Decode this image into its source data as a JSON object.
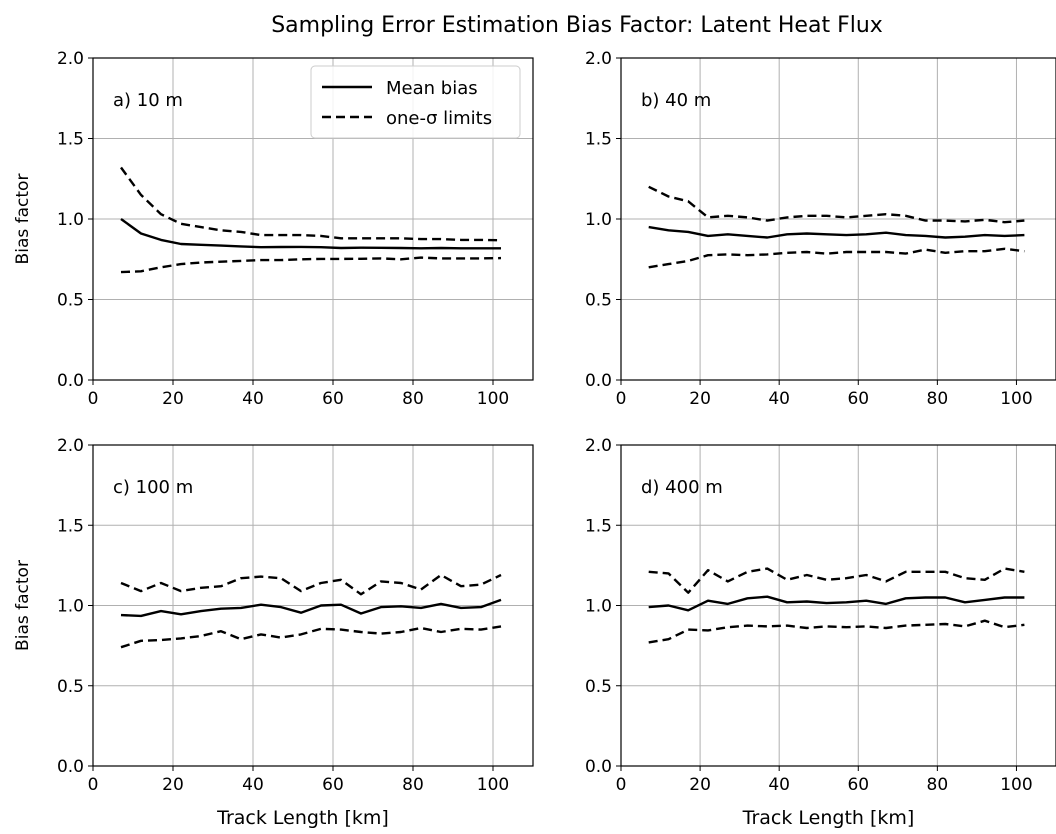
{
  "figure": {
    "title": "Sampling Error Estimation Bias Factor: Latent Heat Flux",
    "legend": {
      "mean_label": "Mean bias",
      "sigma_label": "one-σ limits",
      "placement": "upper right of panel a"
    }
  },
  "chart_data": [
    {
      "type": "line",
      "panel_label": "a) 10 m",
      "xlabel": "",
      "ylabel": "Bias factor",
      "xlim": [
        0,
        110
      ],
      "ylim": [
        0,
        2
      ],
      "xticks": [
        "0",
        "20",
        "40",
        "60",
        "80",
        "100"
      ],
      "yticks": [
        "0.0",
        "0.5",
        "1.0",
        "1.5",
        "2.0"
      ],
      "grid": true,
      "x": [
        7,
        12,
        17,
        22,
        27,
        32,
        37,
        42,
        47,
        52,
        57,
        62,
        67,
        72,
        77,
        82,
        87,
        92,
        97,
        102
      ],
      "series": [
        {
          "name": "Mean bias",
          "style": "solid",
          "values": [
            1.0,
            0.91,
            0.87,
            0.845,
            0.84,
            0.835,
            0.83,
            0.825,
            0.826,
            0.827,
            0.825,
            0.82,
            0.822,
            0.821,
            0.82,
            0.818,
            0.82,
            0.818,
            0.818,
            0.818
          ]
        },
        {
          "name": "one-σ limits",
          "style": "dashed",
          "values": [
            1.32,
            1.15,
            1.03,
            0.97,
            0.95,
            0.93,
            0.92,
            0.9,
            0.9,
            0.9,
            0.895,
            0.88,
            0.88,
            0.88,
            0.88,
            0.875,
            0.875,
            0.87,
            0.87,
            0.868
          ]
        },
        {
          "name": "",
          "style": "dashed",
          "values": [
            0.67,
            0.675,
            0.7,
            0.72,
            0.73,
            0.735,
            0.74,
            0.745,
            0.745,
            0.75,
            0.752,
            0.752,
            0.753,
            0.755,
            0.75,
            0.76,
            0.755,
            0.755,
            0.755,
            0.757
          ]
        }
      ]
    },
    {
      "type": "line",
      "panel_label": "b) 40 m",
      "xlabel": "",
      "ylabel": "",
      "xlim": [
        0,
        110
      ],
      "ylim": [
        0,
        2
      ],
      "xticks": [
        "0",
        "20",
        "40",
        "60",
        "80",
        "100"
      ],
      "yticks": [
        "0.0",
        "0.5",
        "1.0",
        "1.5",
        "2.0"
      ],
      "grid": true,
      "x": [
        7,
        12,
        17,
        22,
        27,
        32,
        37,
        42,
        47,
        52,
        57,
        62,
        67,
        72,
        77,
        82,
        87,
        92,
        97,
        102
      ],
      "series": [
        {
          "name": "Mean bias",
          "style": "solid",
          "values": [
            0.95,
            0.93,
            0.92,
            0.895,
            0.905,
            0.895,
            0.885,
            0.905,
            0.91,
            0.905,
            0.9,
            0.905,
            0.915,
            0.9,
            0.895,
            0.885,
            0.89,
            0.9,
            0.895,
            0.9
          ]
        },
        {
          "name": "one-σ limits",
          "style": "dashed",
          "values": [
            1.2,
            1.14,
            1.11,
            1.01,
            1.02,
            1.01,
            0.99,
            1.01,
            1.02,
            1.02,
            1.01,
            1.02,
            1.03,
            1.02,
            0.99,
            0.99,
            0.985,
            0.995,
            0.98,
            0.99
          ]
        },
        {
          "name": "",
          "style": "dashed",
          "values": [
            0.7,
            0.72,
            0.74,
            0.775,
            0.78,
            0.775,
            0.78,
            0.79,
            0.795,
            0.785,
            0.795,
            0.795,
            0.795,
            0.785,
            0.81,
            0.79,
            0.8,
            0.8,
            0.815,
            0.8
          ]
        }
      ]
    },
    {
      "type": "line",
      "panel_label": "c) 100 m",
      "xlabel": "Track Length [km]",
      "ylabel": "Bias factor",
      "xlim": [
        0,
        110
      ],
      "ylim": [
        0,
        2
      ],
      "xticks": [
        "0",
        "20",
        "40",
        "60",
        "80",
        "100"
      ],
      "yticks": [
        "0.0",
        "0.5",
        "1.0",
        "1.5",
        "2.0"
      ],
      "grid": true,
      "x": [
        7,
        12,
        17,
        22,
        27,
        32,
        37,
        42,
        47,
        52,
        57,
        62,
        67,
        72,
        77,
        82,
        87,
        92,
        97,
        102
      ],
      "series": [
        {
          "name": "Mean bias",
          "style": "solid",
          "values": [
            0.94,
            0.935,
            0.965,
            0.945,
            0.965,
            0.98,
            0.985,
            1.005,
            0.99,
            0.955,
            1.0,
            1.005,
            0.95,
            0.99,
            0.995,
            0.985,
            1.01,
            0.985,
            0.99,
            1.035
          ]
        },
        {
          "name": "one-σ limits",
          "style": "dashed",
          "values": [
            1.14,
            1.09,
            1.14,
            1.09,
            1.11,
            1.12,
            1.17,
            1.18,
            1.17,
            1.09,
            1.14,
            1.16,
            1.07,
            1.15,
            1.14,
            1.1,
            1.19,
            1.12,
            1.13,
            1.19
          ]
        },
        {
          "name": "",
          "style": "dashed",
          "values": [
            0.74,
            0.78,
            0.785,
            0.795,
            0.81,
            0.84,
            0.79,
            0.82,
            0.8,
            0.82,
            0.855,
            0.85,
            0.835,
            0.825,
            0.835,
            0.86,
            0.835,
            0.855,
            0.85,
            0.87
          ]
        }
      ]
    },
    {
      "type": "line",
      "panel_label": "d) 400 m",
      "xlabel": "Track Length [km]",
      "ylabel": "",
      "xlim": [
        0,
        110
      ],
      "ylim": [
        0,
        2
      ],
      "xticks": [
        "0",
        "20",
        "40",
        "60",
        "80",
        "100"
      ],
      "yticks": [
        "0.0",
        "0.5",
        "1.0",
        "1.5",
        "2.0"
      ],
      "grid": true,
      "x": [
        7,
        12,
        17,
        22,
        27,
        32,
        37,
        42,
        47,
        52,
        57,
        62,
        67,
        72,
        77,
        82,
        87,
        92,
        97,
        102
      ],
      "series": [
        {
          "name": "Mean bias",
          "style": "solid",
          "values": [
            0.99,
            1.0,
            0.97,
            1.03,
            1.01,
            1.045,
            1.055,
            1.02,
            1.025,
            1.015,
            1.02,
            1.03,
            1.01,
            1.045,
            1.05,
            1.05,
            1.02,
            1.035,
            1.05,
            1.05
          ]
        },
        {
          "name": "one-σ limits",
          "style": "dashed",
          "values": [
            1.21,
            1.2,
            1.08,
            1.22,
            1.15,
            1.21,
            1.23,
            1.16,
            1.19,
            1.16,
            1.17,
            1.19,
            1.15,
            1.21,
            1.21,
            1.21,
            1.17,
            1.16,
            1.23,
            1.21
          ]
        },
        {
          "name": "",
          "style": "dashed",
          "values": [
            0.77,
            0.79,
            0.85,
            0.845,
            0.865,
            0.875,
            0.87,
            0.875,
            0.86,
            0.87,
            0.865,
            0.87,
            0.86,
            0.875,
            0.88,
            0.885,
            0.87,
            0.905,
            0.865,
            0.88
          ]
        }
      ]
    }
  ]
}
